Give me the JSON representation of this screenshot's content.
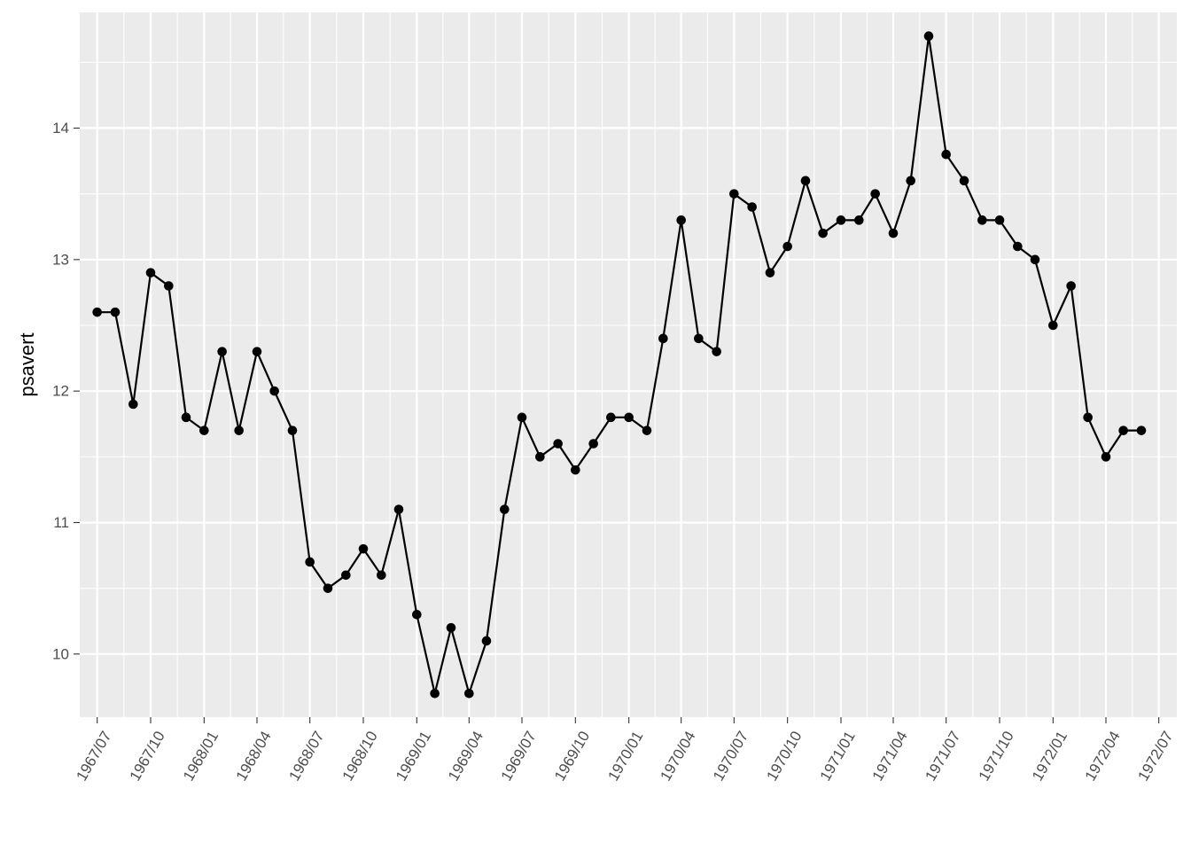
{
  "chart_data": {
    "type": "line",
    "title": "",
    "xlabel": "",
    "ylabel": "psavert",
    "x_ticks": [
      "1967/07",
      "1967/10",
      "1968/01",
      "1968/04",
      "1968/07",
      "1968/10",
      "1969/01",
      "1969/04",
      "1969/07",
      "1969/10",
      "1970/01",
      "1970/04",
      "1970/07",
      "1970/10",
      "1971/01",
      "1971/04",
      "1971/07",
      "1971/10",
      "1972/01",
      "1972/04",
      "1972/07"
    ],
    "y_ticks": [
      10,
      11,
      12,
      13,
      14
    ],
    "ylim": [
      9.52,
      14.88
    ],
    "xlim": [
      "1967-06-01",
      "1972-08-01"
    ],
    "grid": true,
    "markers": true,
    "colors": {
      "panel": "#ebebeb",
      "grid": "#ffffff",
      "line": "#000000"
    },
    "series": [
      {
        "x": [
          "1967-07-01",
          "1967-08-01",
          "1967-09-01",
          "1967-10-01",
          "1967-11-01",
          "1967-12-01",
          "1968-01-01",
          "1968-02-01",
          "1968-03-01",
          "1968-04-01",
          "1968-05-01",
          "1968-06-01",
          "1968-07-01",
          "1968-08-01",
          "1968-09-01",
          "1968-10-01",
          "1968-11-01",
          "1968-12-01",
          "1969-01-01",
          "1969-02-01",
          "1969-03-01",
          "1969-04-01",
          "1969-05-01",
          "1969-06-01",
          "1969-07-01",
          "1969-08-01",
          "1969-09-01",
          "1969-10-01",
          "1969-11-01",
          "1969-12-01",
          "1970-01-01",
          "1970-02-01",
          "1970-03-01",
          "1970-04-01",
          "1970-05-01",
          "1970-06-01",
          "1970-07-01",
          "1970-08-01",
          "1970-09-01",
          "1970-10-01",
          "1970-11-01",
          "1970-12-01",
          "1971-01-01",
          "1971-02-01",
          "1971-03-01",
          "1971-04-01",
          "1971-05-01",
          "1971-06-01",
          "1971-07-01",
          "1971-08-01",
          "1971-09-01",
          "1971-10-01",
          "1971-11-01",
          "1971-12-01",
          "1972-01-01",
          "1972-02-01",
          "1972-03-01",
          "1972-04-01",
          "1972-05-01",
          "1972-06-01"
        ],
        "values": [
          12.6,
          12.6,
          11.9,
          12.9,
          12.8,
          11.8,
          11.7,
          12.3,
          11.7,
          12.3,
          12.0,
          11.7,
          10.7,
          10.5,
          10.6,
          10.8,
          10.6,
          11.1,
          10.3,
          9.7,
          10.2,
          9.7,
          10.1,
          11.1,
          11.8,
          11.5,
          11.6,
          11.4,
          11.6,
          11.8,
          11.8,
          11.7,
          12.4,
          13.3,
          12.4,
          12.3,
          13.5,
          13.4,
          12.9,
          13.1,
          13.6,
          13.2,
          13.3,
          13.3,
          13.5,
          13.2,
          13.6,
          14.7,
          13.8,
          13.6,
          13.3,
          13.3,
          13.1,
          13.0,
          12.5,
          12.8,
          11.8,
          11.5,
          11.7,
          11.7
        ]
      }
    ]
  }
}
